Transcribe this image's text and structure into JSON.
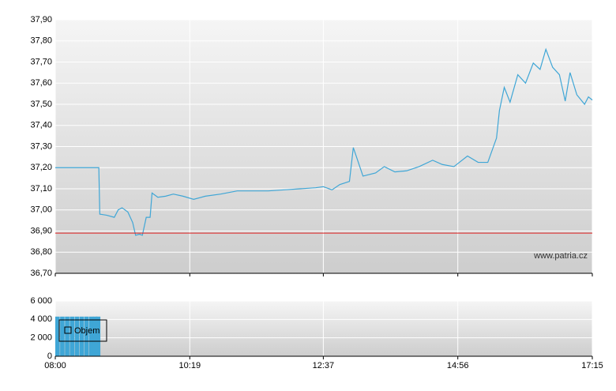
{
  "chart_data": [
    {
      "type": "line",
      "annotation": "www.patria.cz",
      "xlim": [
        "08:00",
        "17:15"
      ],
      "ylim": [
        36.7,
        37.9
      ],
      "yticks": [
        {
          "value": 36.7,
          "label": "36,70"
        },
        {
          "value": 36.8,
          "label": "36,80"
        },
        {
          "value": 36.9,
          "label": "36,90"
        },
        {
          "value": 37.0,
          "label": "37,00"
        },
        {
          "value": 37.1,
          "label": "37,10"
        },
        {
          "value": 37.2,
          "label": "37,20"
        },
        {
          "value": 37.3,
          "label": "37,30"
        },
        {
          "value": 37.4,
          "label": "37,40"
        },
        {
          "value": 37.5,
          "label": "37,50"
        },
        {
          "value": 37.6,
          "label": "37,60"
        },
        {
          "value": 37.7,
          "label": "37,70"
        },
        {
          "value": 37.8,
          "label": "37,80"
        },
        {
          "value": 37.9,
          "label": "37,90"
        }
      ],
      "reference_line": 36.89,
      "reference_color": "#e02020",
      "grid": true,
      "x": [
        "08:00",
        "08:45",
        "08:46",
        "08:53",
        "09:01",
        "09:05",
        "09:09",
        "09:15",
        "09:20",
        "09:23",
        "09:27",
        "09:30",
        "09:34",
        "09:38",
        "09:40",
        "09:46",
        "09:54",
        "10:02",
        "10:12",
        "10:23",
        "10:35",
        "10:51",
        "11:08",
        "11:24",
        "11:40",
        "11:57",
        "12:13",
        "12:29",
        "12:37",
        "12:46",
        "12:54",
        "13:04",
        "13:08",
        "13:18",
        "13:31",
        "13:40",
        "13:51",
        "14:03",
        "14:16",
        "14:30",
        "14:40",
        "14:52",
        "15:06",
        "15:17",
        "15:27",
        "15:36",
        "15:39",
        "15:44",
        "15:50",
        "15:58",
        "16:06",
        "16:14",
        "16:21",
        "16:27",
        "16:34",
        "16:41",
        "16:47",
        "16:52",
        "16:59",
        "17:07",
        "17:11",
        "17:15"
      ],
      "series": [
        {
          "color": "#3fa6d6",
          "values": [
            37.2,
            37.2,
            36.98,
            36.975,
            36.965,
            37.0,
            37.01,
            36.99,
            36.94,
            36.88,
            36.885,
            36.88,
            36.965,
            36.965,
            37.08,
            37.06,
            37.065,
            37.075,
            37.065,
            37.05,
            37.065,
            37.075,
            37.09,
            37.09,
            37.09,
            37.095,
            37.1,
            37.105,
            37.11,
            37.095,
            37.12,
            37.135,
            37.295,
            37.16,
            37.175,
            37.205,
            37.18,
            37.185,
            37.205,
            37.235,
            37.215,
            37.205,
            37.255,
            37.225,
            37.225,
            37.34,
            37.47,
            37.58,
            37.51,
            37.64,
            37.6,
            37.695,
            37.665,
            37.76,
            37.675,
            37.64,
            37.515,
            37.65,
            37.545,
            37.5,
            37.535,
            37.52
          ]
        }
      ]
    },
    {
      "type": "bar",
      "xlim": [
        "08:00",
        "17:15"
      ],
      "xticks": [
        "08:00",
        "10:19",
        "12:37",
        "14:56",
        "17:15"
      ],
      "ylim": [
        0,
        6000
      ],
      "yticks": [
        0,
        {
          "value": 2000,
          "label": "2 000"
        },
        {
          "value": 4000,
          "label": "4 000"
        },
        {
          "value": 6000,
          "label": "6 000"
        }
      ],
      "grid": true,
      "x": [
        "08:00",
        "08:05",
        "08:10",
        "08:15",
        "08:20",
        "08:25",
        "08:30",
        "08:35",
        "08:39",
        "08:42"
      ],
      "series": [
        {
          "name": "Objem",
          "color": "#3fa6d6",
          "values": [
            4300,
            4300,
            4300,
            4300,
            4300,
            4300,
            4300,
            4300,
            4300,
            4300
          ]
        }
      ]
    }
  ]
}
